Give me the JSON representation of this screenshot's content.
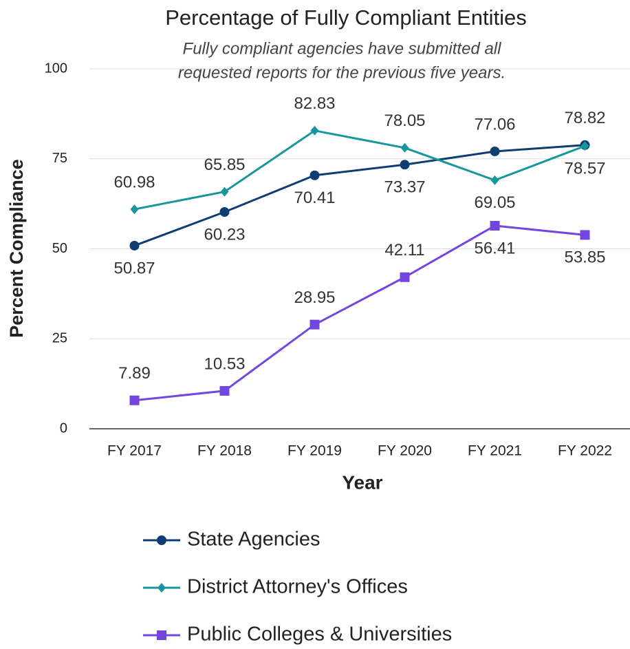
{
  "chart_data": {
    "type": "line",
    "title": "Percentage of Fully Compliant Entities",
    "subtitle": [
      "Fully compliant agencies have submitted all",
      "requested reports for the previous five years."
    ],
    "x_label": "Year",
    "y_label": "Percent Compliance",
    "categories": [
      "FY 2017",
      "FY 2018",
      "FY 2019",
      "FY 2020",
      "FY 2021",
      "FY 2022"
    ],
    "series": [
      {
        "name": "State Agencies",
        "color": "#0d3d73",
        "marker": "circle",
        "values": [
          50.87,
          60.23,
          70.41,
          73.37,
          77.06,
          78.82
        ]
      },
      {
        "name": "District Attorney's Offices",
        "color": "#17979b",
        "marker": "diamond",
        "values": [
          60.98,
          65.85,
          82.83,
          78.05,
          69.05,
          78.57
        ]
      },
      {
        "name": "Public Colleges & Universities",
        "color": "#7346e0",
        "marker": "square",
        "values": [
          7.89,
          10.53,
          28.95,
          42.11,
          56.41,
          53.85
        ]
      }
    ],
    "ylim": [
      0,
      100
    ],
    "yticks": [
      0,
      25,
      50,
      75,
      100
    ],
    "grid": true,
    "legend": "bottom"
  }
}
